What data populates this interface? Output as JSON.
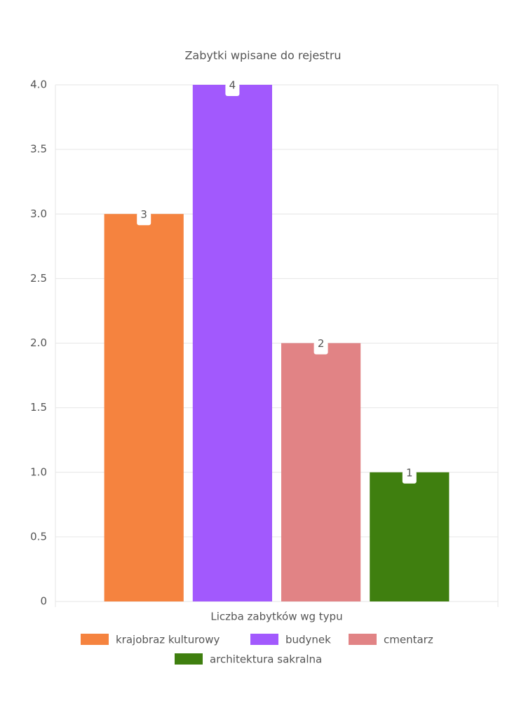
{
  "chart_data": {
    "type": "bar",
    "title": "Zabytki wpisane do rejestru",
    "categories": [
      "Liczba zabytków wg typu"
    ],
    "series": [
      {
        "name": "krajobraz kulturowy",
        "color": "#f5833f",
        "values": [
          3
        ]
      },
      {
        "name": "budynek",
        "color": "#a259fd",
        "values": [
          4
        ]
      },
      {
        "name": "cmentarz",
        "color": "#e18385",
        "values": [
          2
        ]
      },
      {
        "name": "architektura sakralna",
        "color": "#3f7f0f",
        "values": [
          1
        ]
      }
    ],
    "ylim": [
      0,
      4
    ],
    "yticks": [
      0,
      0.5,
      {
        "value": 1,
        "label": "1.0"
      },
      1.5,
      {
        "value": 2,
        "label": "2.0"
      },
      2.5,
      {
        "value": 3,
        "label": "3.0"
      },
      3.5,
      {
        "value": 4,
        "label": "4.0"
      }
    ],
    "grid": true,
    "legend": "bottom"
  }
}
